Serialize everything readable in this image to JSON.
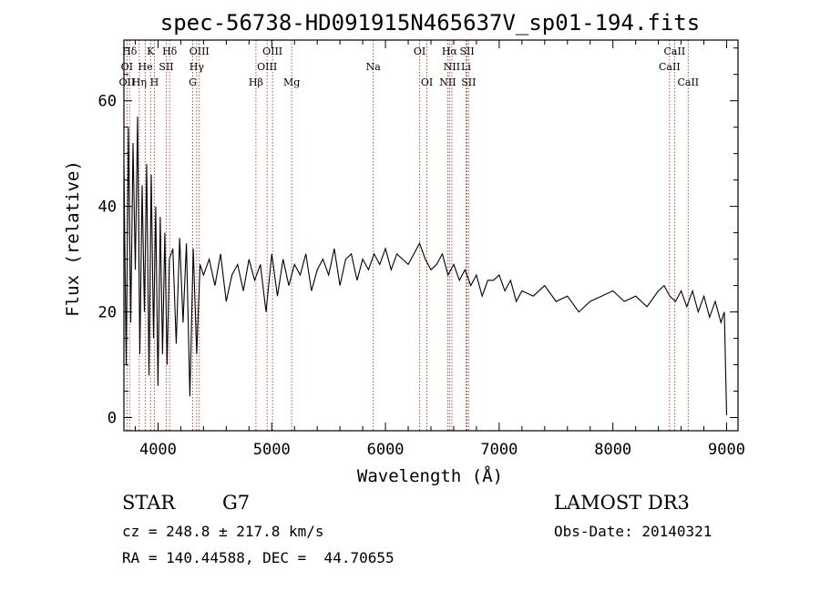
{
  "chart_data": {
    "type": "line",
    "title": "spec-56738-HD091915N465637V_sp01-194.fits",
    "xlabel": "Wavelength (Å)",
    "ylabel": "Flux (relative)",
    "xlim": [
      3700,
      9100
    ],
    "ylim": [
      -2.5,
      71.5
    ],
    "x_ticks": [
      4000,
      5000,
      6000,
      7000,
      8000,
      9000
    ],
    "x_tick_labels": [
      "4000",
      "5000",
      "6000",
      "7000",
      "8000",
      "9000"
    ],
    "y_ticks": [
      0,
      20,
      40,
      60
    ],
    "y_tick_labels": [
      "0",
      "20",
      "40",
      "60"
    ],
    "grid": false,
    "lines": [
      {
        "label": "Hδ",
        "x": 3750,
        "row": 1
      },
      {
        "label": "K",
        "x": 3934,
        "row": 1
      },
      {
        "label": "Hδ",
        "x": 4102,
        "row": 1
      },
      {
        "label": "OIII",
        "x": 4363,
        "row": 1
      },
      {
        "label": "OIII",
        "x": 5007,
        "row": 1
      },
      {
        "label": "OI",
        "x": 6300,
        "row": 1
      },
      {
        "label": "Hα",
        "x": 6563,
        "row": 1
      },
      {
        "label": "SII",
        "x": 6717,
        "row": 1
      },
      {
        "label": "CaII",
        "x": 8542,
        "row": 1
      },
      {
        "label": "OI",
        "x": 3727,
        "row": 2
      },
      {
        "label": "He",
        "x": 3889,
        "row": 2
      },
      {
        "label": "SII",
        "x": 4072,
        "row": 2
      },
      {
        "label": "Hγ",
        "x": 4340,
        "row": 2
      },
      {
        "label": "OIII",
        "x": 4959,
        "row": 2
      },
      {
        "label": "Na",
        "x": 5893,
        "row": 2
      },
      {
        "label": "NII",
        "x": 6584,
        "row": 2
      },
      {
        "label": "Li",
        "x": 6708,
        "row": 2
      },
      {
        "label": "CaII",
        "x": 8498,
        "row": 2
      },
      {
        "label": "OII",
        "x": 3727,
        "row": 3
      },
      {
        "label": "Hη",
        "x": 3835,
        "row": 3
      },
      {
        "label": "H",
        "x": 3968,
        "row": 3
      },
      {
        "label": "G",
        "x": 4305,
        "row": 3
      },
      {
        "label": "Hβ",
        "x": 4861,
        "row": 3
      },
      {
        "label": "Mg",
        "x": 5175,
        "row": 3
      },
      {
        "label": "OI",
        "x": 6364,
        "row": 3
      },
      {
        "label": "NII",
        "x": 6548,
        "row": 3
      },
      {
        "label": "SII",
        "x": 6731,
        "row": 3
      },
      {
        "label": "CaII",
        "x": 8662,
        "row": 3
      }
    ],
    "series": [
      {
        "name": "flux",
        "x": [
          3700,
          3720,
          3740,
          3760,
          3780,
          3800,
          3820,
          3840,
          3860,
          3880,
          3900,
          3920,
          3940,
          3960,
          3980,
          4000,
          4020,
          4040,
          4060,
          4080,
          4100,
          4130,
          4160,
          4190,
          4220,
          4250,
          4280,
          4310,
          4340,
          4370,
          4400,
          4450,
          4500,
          4550,
          4600,
          4650,
          4700,
          4750,
          4800,
          4850,
          4900,
          4950,
          5000,
          5050,
          5100,
          5150,
          5200,
          5250,
          5300,
          5350,
          5400,
          5450,
          5500,
          5550,
          5600,
          5650,
          5700,
          5750,
          5800,
          5850,
          5900,
          5950,
          6000,
          6050,
          6100,
          6150,
          6200,
          6250,
          6300,
          6350,
          6400,
          6450,
          6500,
          6550,
          6600,
          6650,
          6700,
          6750,
          6800,
          6850,
          6900,
          6950,
          7000,
          7050,
          7100,
          7150,
          7200,
          7300,
          7400,
          7500,
          7600,
          7700,
          7800,
          7900,
          8000,
          8100,
          8200,
          8300,
          8400,
          8450,
          8500,
          8550,
          8600,
          8650,
          8700,
          8750,
          8800,
          8850,
          8900,
          8950,
          8980,
          9000,
          9005
        ],
        "y": [
          48,
          10,
          55,
          18,
          52,
          28,
          57,
          12,
          44,
          20,
          48,
          8,
          46,
          15,
          40,
          6,
          38,
          12,
          35,
          10,
          30,
          32,
          14,
          34,
          18,
          33,
          4,
          32,
          12,
          29,
          27,
          30,
          25,
          31,
          22,
          27,
          29,
          24,
          30,
          26,
          29,
          20,
          31,
          23,
          30,
          25,
          29,
          27,
          31,
          24,
          28,
          30,
          27,
          32,
          25,
          30,
          31,
          26,
          30,
          28,
          31,
          29,
          32,
          28,
          31,
          30,
          29,
          31,
          33,
          30,
          28,
          29,
          31,
          27,
          29,
          26,
          28,
          25,
          27,
          23,
          26,
          26,
          27,
          24,
          26,
          22,
          24,
          23,
          25,
          22,
          23,
          20,
          22,
          23,
          24,
          22,
          23,
          21,
          24,
          25,
          23,
          22,
          24,
          21,
          24,
          20,
          23,
          19,
          22,
          18,
          20,
          0.5,
          0.5
        ]
      }
    ]
  },
  "info": {
    "class": "STAR",
    "subclass": "G7",
    "survey": "LAMOST DR3",
    "cz": "cz = 248.8 ± 217.8 km/s",
    "obs_date": "Obs-Date: 20140321",
    "coords": "RA = 140.44588, DEC =  44.70655"
  }
}
